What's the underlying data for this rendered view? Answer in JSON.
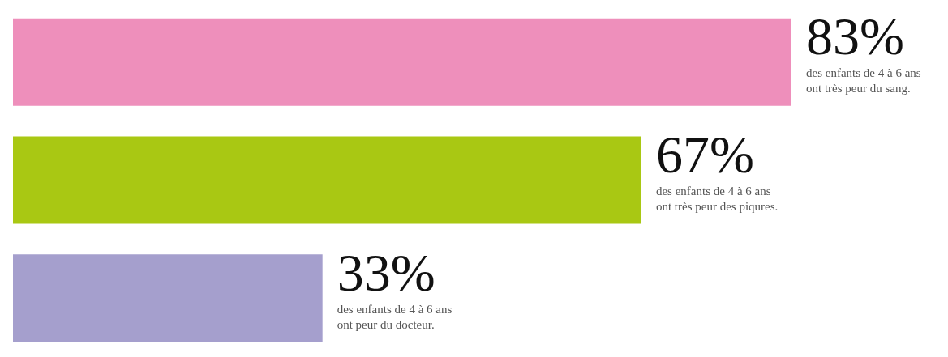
{
  "chart_data": {
    "type": "bar",
    "orientation": "horizontal",
    "categories": [
      null,
      null,
      null
    ],
    "values": [
      83,
      67,
      33
    ],
    "colors": [
      "#ee8fbb",
      "#a9c813",
      "#a59fcd"
    ],
    "value_labels": [
      "83%",
      "67%",
      "33%"
    ],
    "annotations": [
      "des enfants de 4 à 6 ans\nont très peur du sang.",
      "des enfants de 4 à 6 ans\nont très peur des piqures.",
      "des enfants de 4 à 6 ans\nont peur du docteur."
    ]
  }
}
